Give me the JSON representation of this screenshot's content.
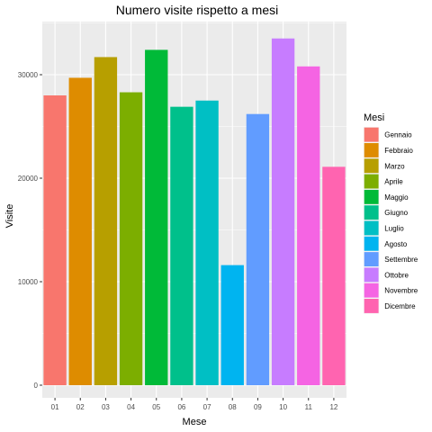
{
  "chart_data": {
    "type": "bar",
    "title": "Numero visite rispetto a mesi",
    "xlabel": "Mese",
    "ylabel": "Visite",
    "categories": [
      "01",
      "02",
      "03",
      "04",
      "05",
      "06",
      "07",
      "08",
      "09",
      "10",
      "11",
      "12"
    ],
    "values": [
      28000,
      29700,
      31700,
      28300,
      32400,
      26900,
      27500,
      11600,
      26200,
      33500,
      30800,
      21100
    ],
    "ylim": [
      0,
      35000
    ],
    "yticks": [
      0,
      10000,
      20000,
      30000
    ],
    "ytick_labels": [
      "0",
      "10000",
      "20000",
      "30000"
    ],
    "grid": true,
    "legend": {
      "title": "Mesi",
      "position": "right",
      "entries": [
        "Gennaio",
        "Febbraio",
        "Marzo",
        "Aprile",
        "Maggio",
        "Giugno",
        "Luglio",
        "Agosto",
        "Settembre",
        "Ottobre",
        "Novembre",
        "Dicembre"
      ]
    },
    "colors": [
      "#F8766D",
      "#DE8C00",
      "#B79F00",
      "#7CAE00",
      "#00BA38",
      "#00C08B",
      "#00BFC4",
      "#00B4F0",
      "#619CFF",
      "#C77CFF",
      "#F564E3",
      "#FF64B0"
    ]
  }
}
